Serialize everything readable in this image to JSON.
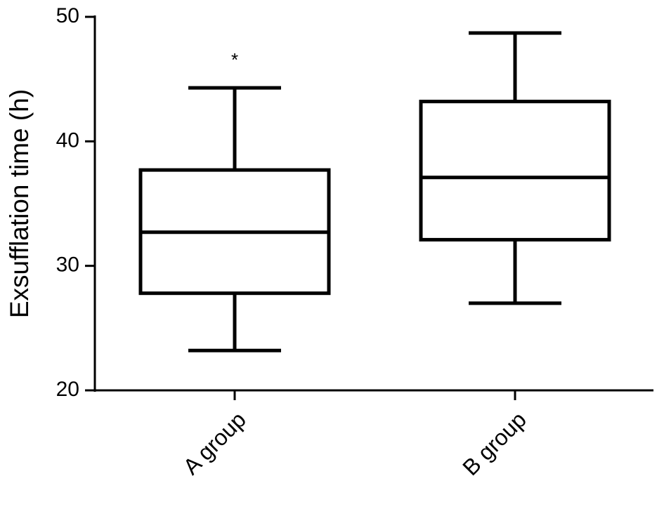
{
  "chart_data": {
    "type": "box",
    "ylabel": "Exsufflation time (h)",
    "categories": [
      "A group",
      "B group"
    ],
    "boxes": [
      {
        "min": 23.2,
        "q1": 27.8,
        "median": 32.7,
        "q3": 37.7,
        "max": 44.3
      },
      {
        "min": 27.0,
        "q1": 32.1,
        "median": 37.1,
        "q3": 43.2,
        "max": 48.7
      }
    ],
    "annotations": [
      "*"
    ],
    "color": "#000000",
    "ylim": [
      20,
      50
    ],
    "yticks": [
      20,
      30,
      40,
      50
    ]
  }
}
